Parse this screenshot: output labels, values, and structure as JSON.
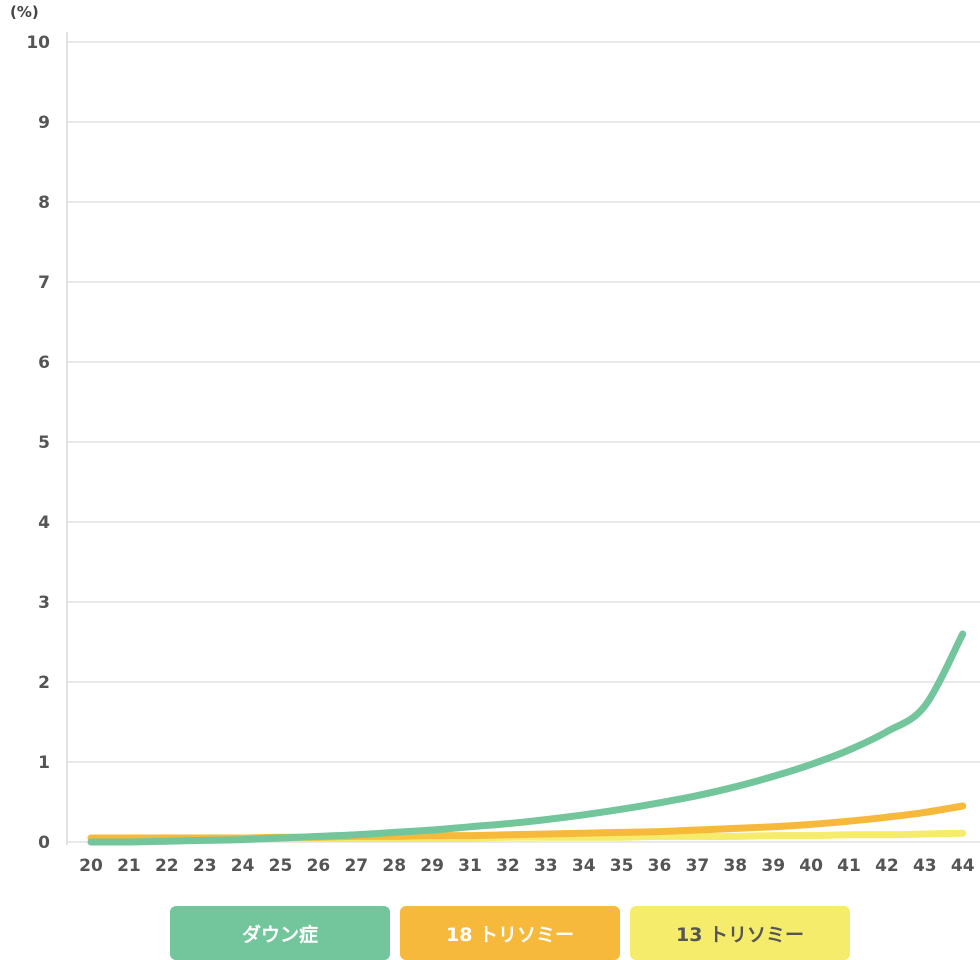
{
  "chart_data": {
    "type": "line",
    "y_unit": "(%)",
    "x": [
      "20",
      "21",
      "22",
      "23",
      "24",
      "25",
      "26",
      "27",
      "28",
      "29",
      "31",
      "32",
      "33",
      "34",
      "35",
      "36",
      "37",
      "38",
      "39",
      "40",
      "41",
      "42",
      "43",
      "44"
    ],
    "ylim": [
      0,
      10
    ],
    "yticks": [
      "0",
      "1",
      "2",
      "3",
      "4",
      "5",
      "6",
      "7",
      "8",
      "9",
      "10"
    ],
    "grid": true,
    "legend_position": "bottom",
    "series": [
      {
        "name": "ダウン症",
        "color": "#73c59b",
        "text_color": "#ffffff",
        "values": [
          0.0,
          0.0,
          0.01,
          0.02,
          0.03,
          0.05,
          0.07,
          0.09,
          0.12,
          0.15,
          0.19,
          0.23,
          0.28,
          0.34,
          0.41,
          0.49,
          0.58,
          0.69,
          0.82,
          0.97,
          1.15,
          1.38,
          1.7,
          2.6
        ]
      },
      {
        "name": "18 トリソミー",
        "color": "#f6b93b",
        "text_color": "#ffffff",
        "values": [
          0.05,
          0.05,
          0.05,
          0.05,
          0.05,
          0.06,
          0.06,
          0.07,
          0.07,
          0.08,
          0.08,
          0.09,
          0.1,
          0.11,
          0.12,
          0.13,
          0.15,
          0.17,
          0.19,
          0.22,
          0.26,
          0.31,
          0.37,
          0.45
        ]
      },
      {
        "name": "13 トリソミー",
        "color": "#f4ec6a",
        "text_color": "#555555",
        "values": [
          0.05,
          0.05,
          0.05,
          0.05,
          0.05,
          0.05,
          0.05,
          0.05,
          0.05,
          0.05,
          0.05,
          0.06,
          0.06,
          0.06,
          0.06,
          0.07,
          0.07,
          0.07,
          0.08,
          0.08,
          0.09,
          0.09,
          0.1,
          0.11
        ]
      }
    ]
  }
}
